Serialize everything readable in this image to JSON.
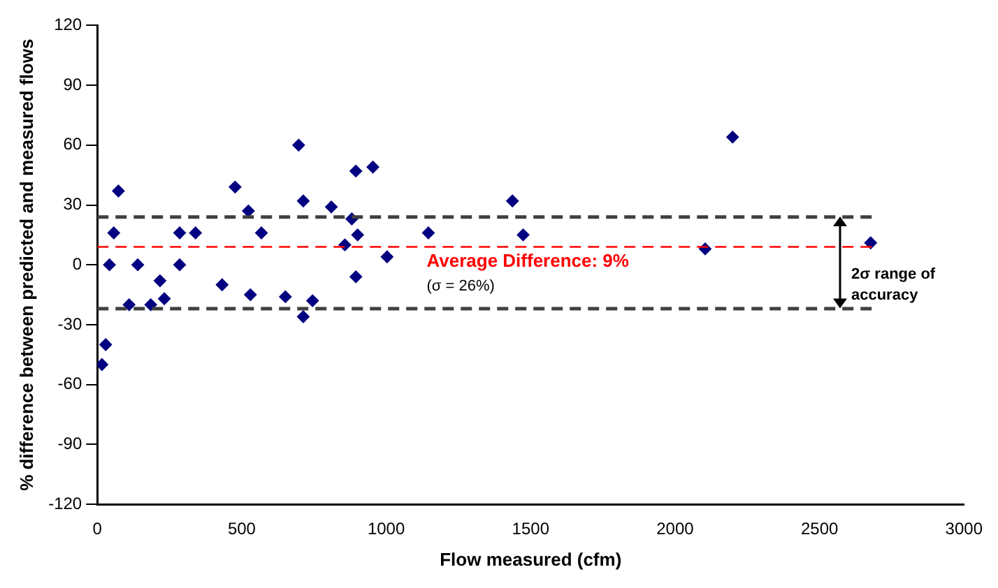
{
  "chart_data": {
    "type": "scatter",
    "xlabel": "Flow measured (cfm)",
    "ylabel": "% difference between predicted and measured flows",
    "x": [
      16,
      29,
      42,
      57,
      73,
      110,
      140,
      185,
      217,
      232,
      285,
      285,
      340,
      432,
      477,
      523,
      530,
      568,
      651,
      697,
      713,
      713,
      745,
      810,
      857,
      881,
      895,
      895,
      901,
      954,
      1003,
      1146,
      1437,
      1474,
      2104,
      2199,
      2677
    ],
    "series": [
      {
        "color": "#000080",
        "values": [
          -50,
          -40,
          0,
          16,
          37,
          -20,
          0,
          -20,
          -8,
          -17,
          16,
          0,
          16,
          -10,
          39,
          27,
          -15,
          16,
          -16,
          60,
          32,
          -26,
          -18,
          29,
          10,
          23,
          47,
          -6,
          15,
          49,
          4,
          16,
          32,
          15,
          8,
          64,
          11
        ]
      }
    ],
    "xlim": [
      0,
      3000
    ],
    "xticks": [
      0,
      500,
      1000,
      1500,
      2000,
      2500,
      3000
    ],
    "ylim": [
      -120,
      120
    ],
    "yticks": [
      -120,
      -90,
      -60,
      -30,
      0,
      30,
      60,
      90,
      120
    ],
    "grid": false,
    "legend": false,
    "marker": "diamond",
    "ref_lines": [
      {
        "axis": "y",
        "value": 24,
        "color": "#404040",
        "line_style": "dashed"
      },
      {
        "axis": "y",
        "value": -22,
        "color": "#404040",
        "line_style": "dashed"
      },
      {
        "axis": "y",
        "value": 9,
        "label": "Average Difference: 9%",
        "color": "#ff0000",
        "line_style": "dashed"
      }
    ],
    "annotations": [
      "(σ = 26%)",
      "2σ range of accuracy"
    ]
  }
}
